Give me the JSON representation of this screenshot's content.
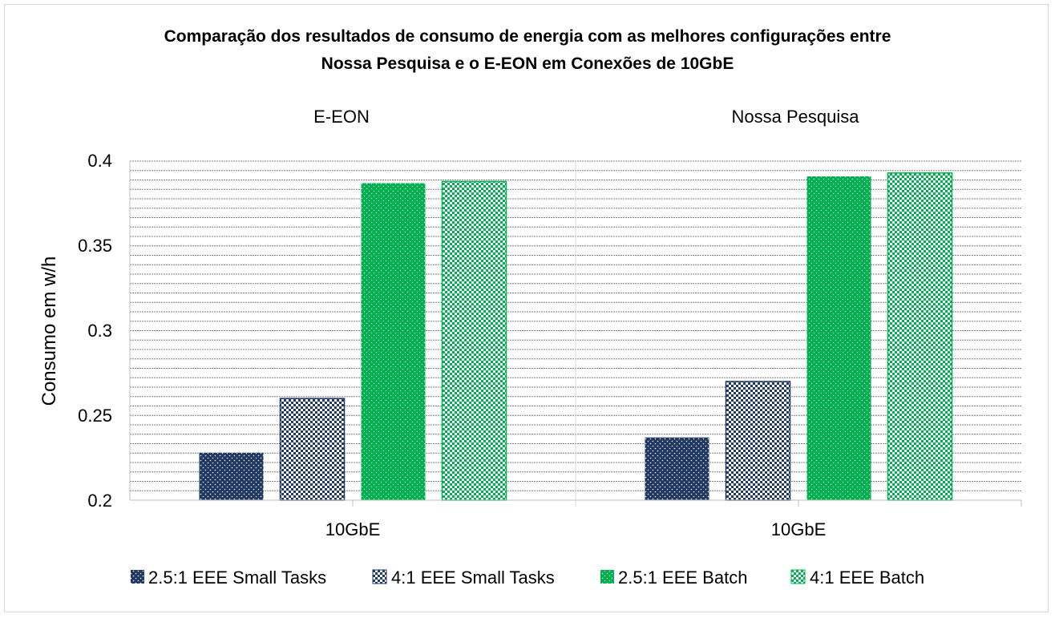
{
  "chart_data": {
    "type": "bar",
    "title_lines": [
      "Comparação dos resultados de consumo de energia com as melhores configurações entre",
      "Nossa Pesquisa e o E-EON em Conexões de 10GbE"
    ],
    "facets": [
      {
        "name": "E-EON",
        "category": "10GbE",
        "values": [
          0.228,
          0.26,
          0.387,
          0.388
        ]
      },
      {
        "name": "Nossa Pesquisa",
        "category": "10GbE",
        "values": [
          0.237,
          0.27,
          0.391,
          0.393
        ]
      }
    ],
    "series": [
      {
        "name": "2.5:1 EEE Small Tasks",
        "color": "#203864",
        "pattern": "dots"
      },
      {
        "name": "4:1 EEE Small Tasks",
        "color": "#203864",
        "pattern": "checker"
      },
      {
        "name": "2.5:1 EEE Batch",
        "color": "#00b050",
        "pattern": "dots"
      },
      {
        "name": "4:1 EEE Batch",
        "color": "#00b050",
        "pattern": "checker"
      }
    ],
    "ylabel": "Consumo em w/h",
    "ylim": [
      0.2,
      0.4
    ],
    "yticks": [
      0.2,
      0.25,
      0.3,
      0.35,
      0.4
    ],
    "ytick_labels": [
      "0.2",
      "0.25",
      "0.3",
      "0.35",
      "0.4"
    ],
    "minor_gridlines": 8,
    "grid": true,
    "legend_position": "bottom"
  }
}
